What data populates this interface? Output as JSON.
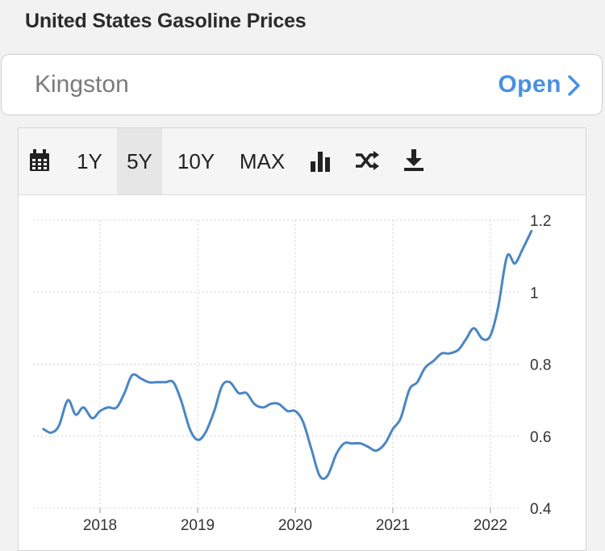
{
  "header": {
    "title": "United States Gasoline Prices"
  },
  "banner": {
    "location": "Kingston",
    "action": "Open"
  },
  "toolbar": {
    "ranges": [
      {
        "label": "1Y",
        "active": false
      },
      {
        "label": "5Y",
        "active": true
      },
      {
        "label": "10Y",
        "active": false
      },
      {
        "label": "MAX",
        "active": false
      }
    ],
    "icons": [
      "calendar-icon",
      "bar-chart-icon",
      "shuffle-icon",
      "download-icon"
    ]
  },
  "colors": {
    "line": "#4a86c5",
    "accent": "#4a90e2"
  },
  "chart_data": {
    "type": "line",
    "title": "",
    "xlabel": "",
    "ylabel": "",
    "ylim": [
      0.4,
      1.2
    ],
    "yticks": [
      0.4,
      0.6,
      0.8,
      1,
      1.2
    ],
    "ytick_labels": [
      "0.4",
      "0.6",
      "0.8",
      "1",
      "1.2"
    ],
    "xticks": [
      2018,
      2019,
      2020,
      2021,
      2022
    ],
    "xtick_labels": [
      "2018",
      "2019",
      "2020",
      "2021",
      "2022"
    ],
    "xlim": [
      2017.35,
      2022.55
    ],
    "grid": true,
    "y_axis_position": "right",
    "series": [
      {
        "x": [
          2017.42,
          2017.5,
          2017.58,
          2017.67,
          2017.75,
          2017.83,
          2017.92,
          2018.0,
          2018.08,
          2018.17,
          2018.25,
          2018.33,
          2018.42,
          2018.5,
          2018.58,
          2018.67,
          2018.75,
          2018.83,
          2018.92,
          2019.0,
          2019.08,
          2019.17,
          2019.25,
          2019.33,
          2019.42,
          2019.5,
          2019.58,
          2019.67,
          2019.75,
          2019.83,
          2019.92,
          2020.0,
          2020.08,
          2020.17,
          2020.25,
          2020.33,
          2020.42,
          2020.5,
          2020.58,
          2020.67,
          2020.75,
          2020.83,
          2020.92,
          2021.0,
          2021.08,
          2021.17,
          2021.25,
          2021.33,
          2021.42,
          2021.5,
          2021.58,
          2021.67,
          2021.75,
          2021.83,
          2021.92,
          2022.0,
          2022.08,
          2022.17,
          2022.25,
          2022.33,
          2022.42
        ],
        "y": [
          0.62,
          0.61,
          0.63,
          0.7,
          0.66,
          0.68,
          0.65,
          0.67,
          0.68,
          0.68,
          0.72,
          0.77,
          0.76,
          0.75,
          0.75,
          0.75,
          0.75,
          0.7,
          0.62,
          0.59,
          0.61,
          0.67,
          0.74,
          0.75,
          0.72,
          0.72,
          0.69,
          0.68,
          0.69,
          0.69,
          0.67,
          0.67,
          0.64,
          0.56,
          0.49,
          0.49,
          0.55,
          0.58,
          0.58,
          0.58,
          0.57,
          0.56,
          0.58,
          0.62,
          0.65,
          0.73,
          0.75,
          0.79,
          0.81,
          0.83,
          0.83,
          0.84,
          0.87,
          0.9,
          0.87,
          0.88,
          0.96,
          1.1,
          1.08,
          1.12,
          1.17
        ]
      }
    ]
  }
}
